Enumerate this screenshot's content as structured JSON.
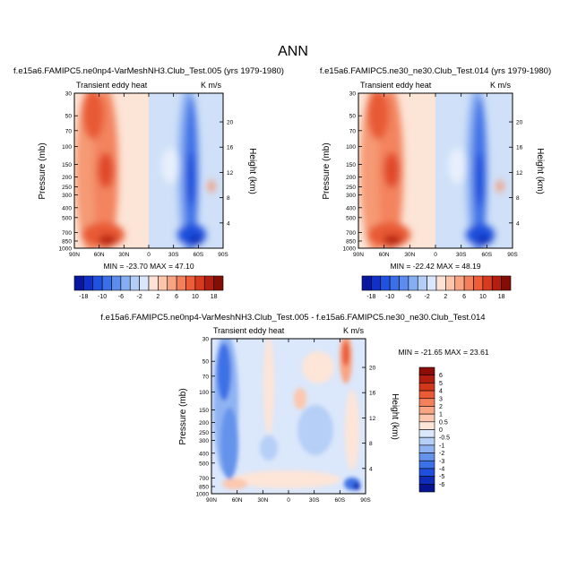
{
  "figure": {
    "title": "ANN"
  },
  "chart_data": [
    {
      "type": "heatmap",
      "title": "f.e15a6.FAMIPC5.ne0np4-VarMeshNH3.Club_Test.005 (yrs 1979-1980)",
      "left_string": "Transient eddy heat",
      "right_string": "K m/s",
      "xlabel": "",
      "ylabel": "Pressure (mb)",
      "y2label": "Height (km)",
      "x_ticks": [
        "90N",
        "60N",
        "30N",
        "0",
        "30S",
        "60S",
        "90S"
      ],
      "y_ticks": [
        "30",
        "50",
        "70",
        "100",
        "150",
        "200",
        "250",
        "300",
        "400",
        "500",
        "700",
        "850",
        "1000"
      ],
      "y2_ticks": [
        "4",
        "8",
        "12",
        "16",
        "20"
      ],
      "stats": "MIN = -23.70   MAX = 47.10",
      "min": -23.7,
      "max": 47.1
    },
    {
      "type": "heatmap",
      "title": "f.e15a6.FAMIPC5.ne30_ne30.Club_Test.014 (yrs 1979-1980)",
      "left_string": "Transient eddy heat",
      "right_string": "K m/s",
      "xlabel": "",
      "ylabel": "Pressure (mb)",
      "y2label": "Height (km)",
      "x_ticks": [
        "90N",
        "60N",
        "30N",
        "0",
        "30S",
        "60S",
        "90S"
      ],
      "y_ticks": [
        "30",
        "50",
        "70",
        "100",
        "150",
        "200",
        "250",
        "300",
        "400",
        "500",
        "700",
        "850",
        "1000"
      ],
      "y2_ticks": [
        "4",
        "8",
        "12",
        "16",
        "20"
      ],
      "stats": "MIN = -22.42   MAX = 48.19",
      "min": -22.42,
      "max": 48.19
    },
    {
      "type": "heatmap",
      "title": "f.e15a6.FAMIPC5.ne0np4-VarMeshNH3.Club_Test.005 - f.e15a6.FAMIPC5.ne30_ne30.Club_Test.014",
      "left_string": "Transient eddy heat",
      "right_string": "K m/s",
      "xlabel": "",
      "ylabel": "Pressure (mb)",
      "y2label": "Height (km)",
      "x_ticks": [
        "90N",
        "60N",
        "30N",
        "0",
        "30S",
        "60S",
        "90S"
      ],
      "y_ticks": [
        "30",
        "50",
        "70",
        "100",
        "150",
        "200",
        "250",
        "300",
        "400",
        "500",
        "700",
        "850",
        "1000"
      ],
      "y2_ticks": [
        "4",
        "8",
        "12",
        "16",
        "20"
      ],
      "stats": "MIN = -21.65   MAX = 23.61",
      "min": -21.65,
      "max": 23.61
    }
  ],
  "colorbars": {
    "main": {
      "labels": [
        "-18",
        "-10",
        "-6",
        "-2",
        "2",
        "6",
        "10",
        "18"
      ],
      "colors": [
        "#08179e",
        "#1030c8",
        "#1f52e0",
        "#3a6fe8",
        "#5b8cee",
        "#86aef2",
        "#b3cdf7",
        "#d9e6fb",
        "#fde3d6",
        "#fbc4ab",
        "#f8a381",
        "#f4805b",
        "#ef5c38",
        "#d83a1f",
        "#b21f10",
        "#840d06"
      ]
    },
    "diff": {
      "labels": [
        "6",
        "5",
        "4",
        "3",
        "2",
        "1",
        "0.5",
        "0",
        "-0.5",
        "-1",
        "-2",
        "-3",
        "-4",
        "-5",
        "-6"
      ],
      "colors": [
        "#8c0c06",
        "#b01d0e",
        "#d2371c",
        "#ea5a35",
        "#f4805b",
        "#f9a483",
        "#fcc7ae",
        "#fde5d8",
        "#dbe7fb",
        "#b6cff7",
        "#8fb3f2",
        "#6593ec",
        "#3d71e6",
        "#1f4fdc",
        "#0e2cb8",
        "#06158f"
      ]
    }
  }
}
